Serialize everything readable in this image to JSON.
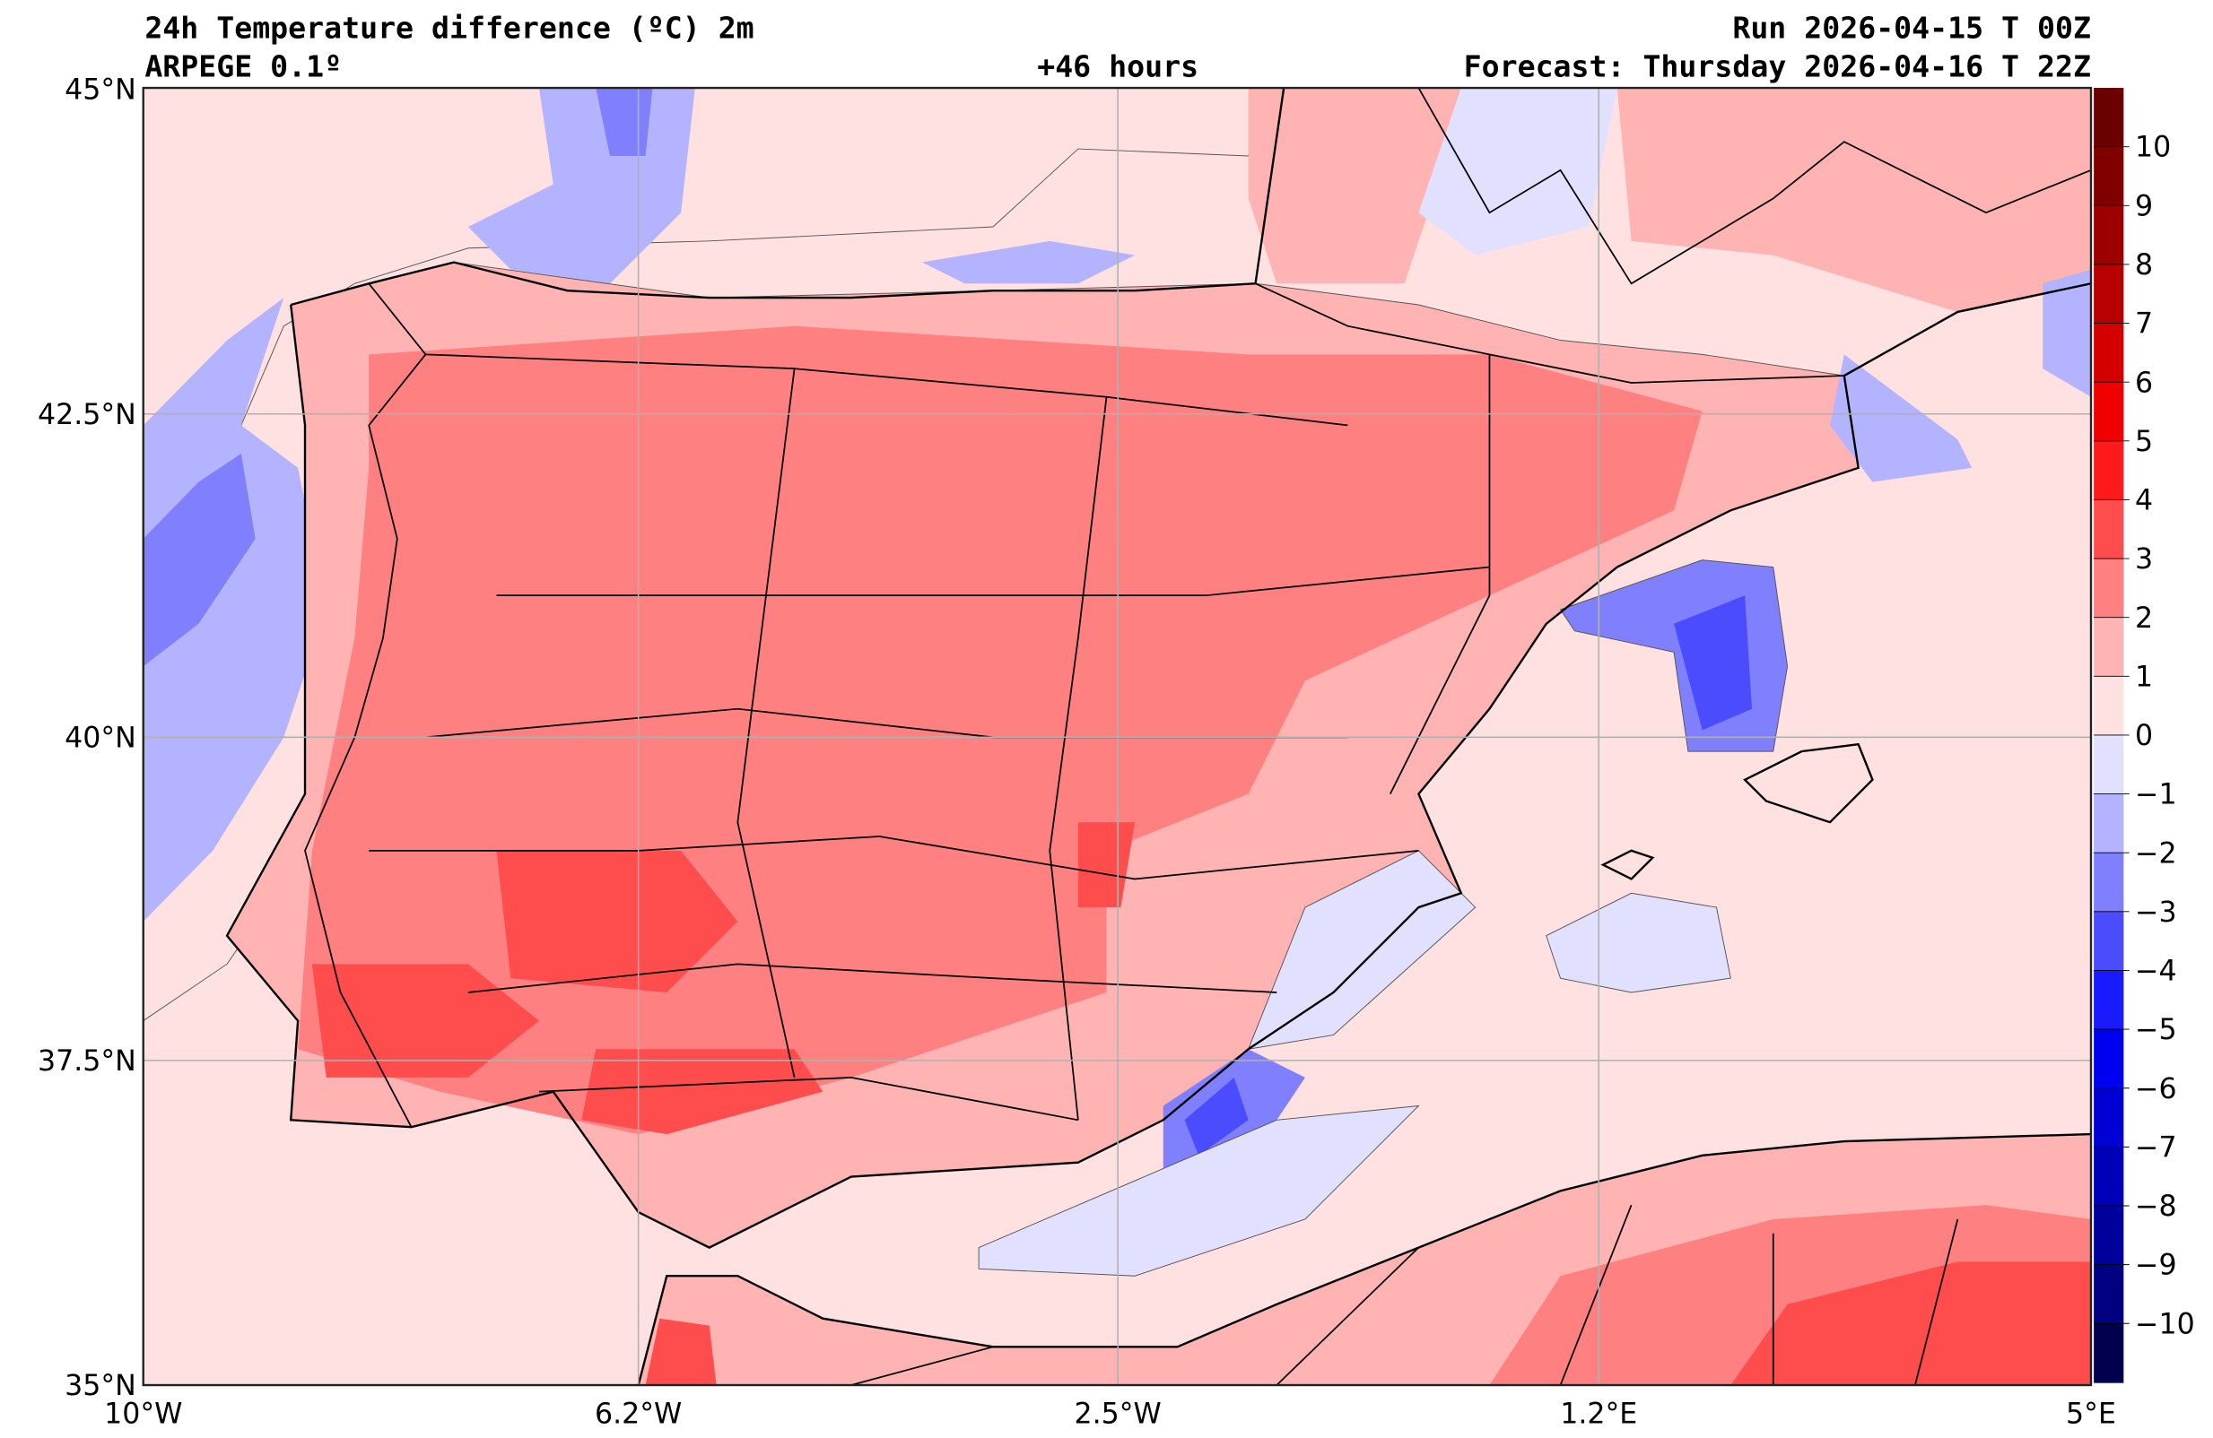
{
  "header": {
    "title": "24h Temperature difference (ºC) 2m",
    "model": "ARPEGE 0.1º",
    "lead": "+46 hours",
    "run": "Run 2026-04-15 T 00Z",
    "forecast": "Forecast: Thursday 2026-04-16 T 22Z"
  },
  "axes": {
    "lat_labels": [
      "45°N",
      "42.5°N",
      "40°N",
      "37.5°N",
      "35°N"
    ],
    "lon_labels": [
      "10°W",
      "6.2°W",
      "2.5°W",
      "1.2°E",
      "5°E"
    ]
  },
  "colorbar": {
    "tick_labels": [
      "10",
      "9",
      "8",
      "7",
      "6",
      "5",
      "4",
      "3",
      "2",
      "1",
      "0",
      "−1",
      "−2",
      "−3",
      "−4",
      "−5",
      "−6",
      "−7",
      "−8",
      "−9",
      "−10"
    ],
    "colors": [
      "#6a0000",
      "#800000",
      "#9c0000",
      "#b80000",
      "#d40000",
      "#f00000",
      "#ff1a1a",
      "#ff4c4c",
      "#ff8080",
      "#ffb3b3",
      "#ffe1e1",
      "#e1e1ff",
      "#b3b3ff",
      "#8080ff",
      "#4c4cff",
      "#1a1aff",
      "#0000f0",
      "#0000d4",
      "#0000b8",
      "#00009c",
      "#000080",
      "#00004e"
    ]
  },
  "palette": {
    "sea_warm": "#ffe1e1",
    "light_red": "#ffb3b3",
    "red": "#ff8080",
    "strong_red": "#ff4c4c",
    "light_blue": "#e1e1ff",
    "blue": "#b3b3ff",
    "mid_blue": "#8080ff",
    "deep_blue": "#4c4cff"
  }
}
